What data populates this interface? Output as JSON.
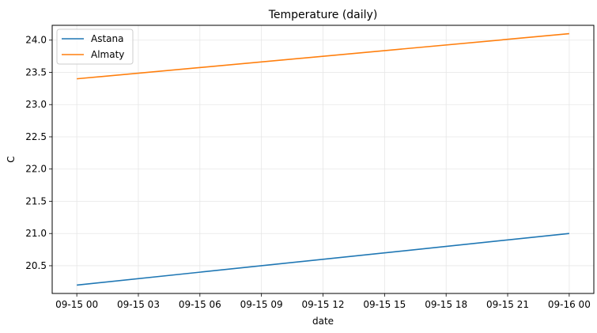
{
  "chart_data": {
    "type": "line",
    "title": "Temperature (daily)",
    "xlabel": "date",
    "ylabel": "C",
    "x": [
      "2024-09-15T00:00",
      "2024-09-16T00:00"
    ],
    "x_tick_labels": [
      "09-15 00",
      "09-15 03",
      "09-15 06",
      "09-15 09",
      "09-15 12",
      "09-15 15",
      "09-15 18",
      "09-15 21",
      "09-16 00"
    ],
    "y_tick_labels": [
      "20.5",
      "21.0",
      "21.5",
      "22.0",
      "22.5",
      "23.0",
      "23.5",
      "24.0"
    ],
    "ylim": [
      20.07,
      24.23
    ],
    "grid": true,
    "legend_position": "top-left",
    "series": [
      {
        "name": "Astana",
        "color": "#1f77b4",
        "values": [
          20.2,
          21.0
        ]
      },
      {
        "name": "Almaty",
        "color": "#ff7f0e",
        "values": [
          23.4,
          24.1
        ]
      }
    ]
  }
}
